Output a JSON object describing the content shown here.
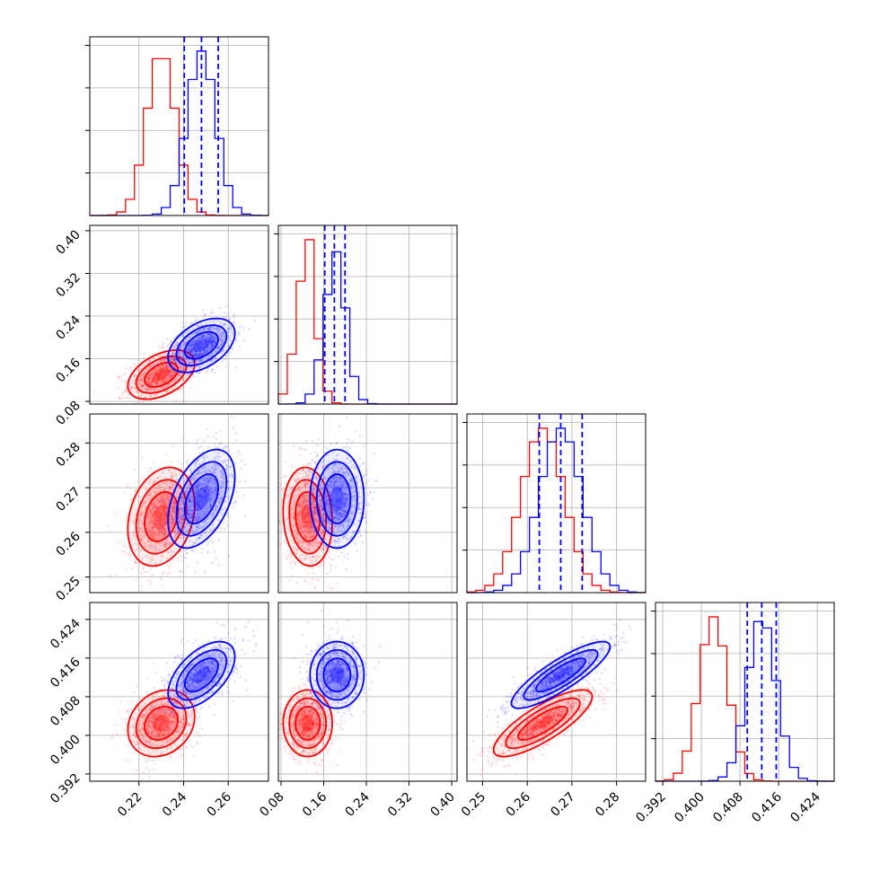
{
  "chart_data": {
    "type": "corner",
    "grid": true,
    "colors": {
      "series_a": "#ff0000",
      "series_b": "#0000ff"
    },
    "parameters": [
      {
        "range": [
          0.198,
          0.278
        ],
        "ticks": [
          0.22,
          0.24,
          0.26
        ],
        "tick_labels": [
          "0.22",
          "0.24",
          "0.26"
        ]
      },
      {
        "range": [
          0.075,
          0.41
        ],
        "ticks": [
          0.08,
          0.16,
          0.24,
          0.32,
          0.4
        ],
        "tick_labels": [
          "0.08",
          "0.16",
          "0.24",
          "0.32",
          "0.40"
        ]
      },
      {
        "range": [
          0.2465,
          0.2865
        ],
        "ticks": [
          0.25,
          0.26,
          0.27,
          0.28
        ],
        "tick_labels": [
          "0.25",
          "0.26",
          "0.27",
          "0.28"
        ]
      },
      {
        "range": [
          0.3905,
          0.4275
        ],
        "ticks": [
          0.392,
          0.4,
          0.408,
          0.416,
          0.424
        ],
        "tick_labels": [
          "0.392",
          "0.400",
          "0.408",
          "0.416",
          "0.424"
        ]
      }
    ],
    "series": [
      {
        "color": "#ff0000",
        "means": [
          0.23,
          0.13,
          0.2635,
          0.4025
        ],
        "stds": [
          0.0065,
          0.02,
          0.0048,
          0.003
        ],
        "correlations": [
          [
            0,
            1,
            0.45
          ],
          [
            0,
            2,
            0.25
          ],
          [
            1,
            2,
            -0.1
          ],
          [
            0,
            3,
            0.2
          ],
          [
            1,
            3,
            0.0
          ],
          [
            2,
            3,
            0.8
          ]
        ]
      },
      {
        "color": "#0000ff",
        "means": [
          0.248,
          0.185,
          0.2675,
          0.4125
        ],
        "stds": [
          0.0065,
          0.022,
          0.0048,
          0.003
        ],
        "correlations": [
          [
            0,
            1,
            0.45
          ],
          [
            0,
            2,
            0.45
          ],
          [
            1,
            2,
            0.0
          ],
          [
            0,
            3,
            0.55
          ],
          [
            1,
            3,
            0.0
          ],
          [
            2,
            3,
            0.85
          ]
        ],
        "quantiles": [
          [
            0.2403,
            0.248,
            0.2555
          ],
          [
            0.162,
            0.18,
            0.2
          ],
          [
            0.2627,
            0.2675,
            0.2723
          ],
          [
            0.4095,
            0.4125,
            0.4155
          ]
        ]
      }
    ]
  }
}
